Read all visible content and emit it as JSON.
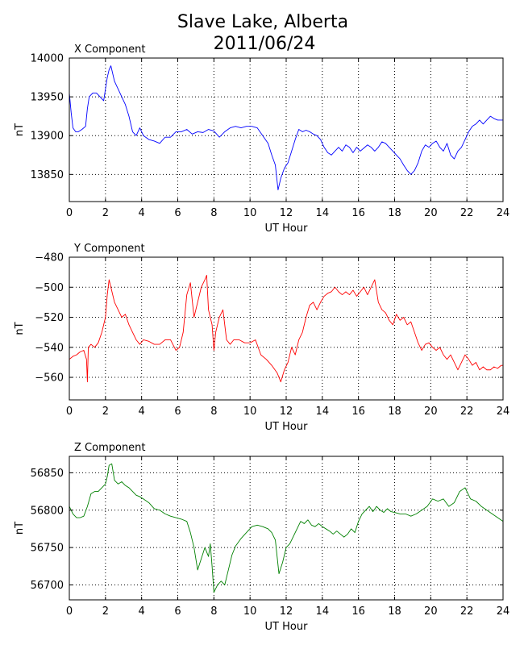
{
  "figure": {
    "title_line1": "Slave Lake, Alberta",
    "title_line2": "2011/06/24"
  },
  "chart_data": [
    {
      "type": "line",
      "title": "X Component",
      "xlabel": "UT Hour",
      "ylabel": "nT",
      "xlim": [
        0,
        24
      ],
      "ylim": [
        13815,
        14000
      ],
      "xticks": [
        0,
        2,
        4,
        6,
        8,
        10,
        12,
        14,
        16,
        18,
        20,
        22,
        24
      ],
      "yticks": [
        13850,
        13900,
        13950,
        14000
      ],
      "grid": true,
      "series": [
        {
          "color": "#0000ff",
          "x": [
            0,
            0.1,
            0.2,
            0.35,
            0.5,
            0.7,
            0.9,
            1.0,
            1.1,
            1.3,
            1.5,
            1.7,
            1.9,
            2.0,
            2.1,
            2.2,
            2.3,
            2.5,
            2.7,
            2.9,
            3.1,
            3.3,
            3.5,
            3.7,
            3.9,
            4.1,
            4.4,
            4.7,
            5.0,
            5.3,
            5.6,
            5.9,
            6.2,
            6.5,
            6.8,
            7.1,
            7.4,
            7.7,
            8.0,
            8.3,
            8.6,
            8.9,
            9.2,
            9.5,
            9.8,
            10.1,
            10.4,
            10.7,
            11.0,
            11.2,
            11.4,
            11.55,
            11.7,
            11.9,
            12.1,
            12.3,
            12.5,
            12.7,
            12.9,
            13.1,
            13.3,
            13.5,
            13.7,
            13.9,
            14.1,
            14.3,
            14.5,
            14.7,
            14.9,
            15.1,
            15.3,
            15.5,
            15.7,
            15.9,
            16.1,
            16.3,
            16.5,
            16.7,
            16.9,
            17.1,
            17.3,
            17.5,
            17.7,
            17.9,
            18.1,
            18.3,
            18.5,
            18.7,
            18.9,
            19.1,
            19.3,
            19.5,
            19.7,
            19.9,
            20.1,
            20.3,
            20.5,
            20.7,
            20.9,
            21.1,
            21.3,
            21.5,
            21.7,
            21.9,
            22.1,
            22.3,
            22.5,
            22.7,
            22.9,
            23.1,
            23.3,
            23.5,
            23.7,
            23.9,
            24.0
          ],
          "y": [
            13955,
            13930,
            13910,
            13905,
            13905,
            13908,
            13912,
            13935,
            13950,
            13955,
            13955,
            13950,
            13945,
            13960,
            13975,
            13985,
            13990,
            13970,
            13960,
            13950,
            13940,
            13925,
            13905,
            13900,
            13910,
            13900,
            13895,
            13893,
            13890,
            13898,
            13898,
            13905,
            13905,
            13908,
            13902,
            13905,
            13904,
            13908,
            13906,
            13898,
            13905,
            13910,
            13912,
            13910,
            13912,
            13912,
            13910,
            13900,
            13890,
            13875,
            13862,
            13830,
            13845,
            13858,
            13865,
            13880,
            13895,
            13908,
            13905,
            13907,
            13905,
            13902,
            13900,
            13895,
            13885,
            13878,
            13875,
            13880,
            13885,
            13880,
            13888,
            13885,
            13878,
            13885,
            13880,
            13884,
            13888,
            13885,
            13880,
            13885,
            13892,
            13890,
            13885,
            13880,
            13875,
            13870,
            13862,
            13855,
            13850,
            13855,
            13865,
            13880,
            13888,
            13885,
            13890,
            13893,
            13885,
            13880,
            13890,
            13875,
            13870,
            13880,
            13885,
            13895,
            13905,
            13912,
            13915,
            13920,
            13915,
            13920,
            13925,
            13922,
            13920,
            13920,
            13920
          ]
        }
      ]
    },
    {
      "type": "line",
      "title": "Y Component",
      "xlabel": "UT Hour",
      "ylabel": "nT",
      "xlim": [
        0,
        24
      ],
      "ylim": [
        -575,
        -480
      ],
      "xticks": [
        0,
        2,
        4,
        6,
        8,
        10,
        12,
        14,
        16,
        18,
        20,
        22,
        24
      ],
      "yticks": [
        -560,
        -540,
        -520,
        -500,
        -480
      ],
      "grid": true,
      "series": [
        {
          "color": "#ff0000",
          "x": [
            0,
            0.2,
            0.4,
            0.6,
            0.8,
            0.95,
            1.0,
            1.05,
            1.2,
            1.4,
            1.6,
            1.8,
            2.0,
            2.1,
            2.2,
            2.3,
            2.5,
            2.7,
            2.9,
            3.1,
            3.3,
            3.5,
            3.7,
            3.9,
            4.1,
            4.4,
            4.7,
            5.0,
            5.3,
            5.6,
            5.9,
            6.1,
            6.3,
            6.5,
            6.7,
            6.9,
            7.1,
            7.3,
            7.5,
            7.6,
            7.7,
            7.9,
            8.0,
            8.1,
            8.3,
            8.5,
            8.7,
            8.9,
            9.1,
            9.4,
            9.7,
            10.0,
            10.3,
            10.6,
            10.9,
            11.2,
            11.5,
            11.7,
            11.9,
            12.1,
            12.3,
            12.5,
            12.7,
            12.9,
            13.1,
            13.3,
            13.5,
            13.7,
            13.9,
            14.1,
            14.3,
            14.5,
            14.7,
            14.9,
            15.1,
            15.3,
            15.5,
            15.7,
            15.9,
            16.1,
            16.3,
            16.5,
            16.7,
            16.9,
            17.1,
            17.3,
            17.5,
            17.7,
            17.9,
            18.1,
            18.3,
            18.5,
            18.7,
            18.9,
            19.1,
            19.3,
            19.5,
            19.7,
            19.9,
            20.1,
            20.3,
            20.5,
            20.7,
            20.9,
            21.1,
            21.3,
            21.5,
            21.7,
            21.9,
            22.1,
            22.3,
            22.5,
            22.7,
            22.9,
            23.1,
            23.3,
            23.5,
            23.7,
            23.9,
            24.0
          ],
          "y": [
            -548,
            -546,
            -545,
            -543,
            -542,
            -548,
            -563,
            -540,
            -538,
            -540,
            -537,
            -530,
            -520,
            -505,
            -495,
            -500,
            -510,
            -515,
            -520,
            -518,
            -525,
            -530,
            -535,
            -538,
            -535,
            -536,
            -538,
            -538,
            -535,
            -535,
            -542,
            -540,
            -530,
            -505,
            -497,
            -520,
            -510,
            -500,
            -495,
            -492,
            -515,
            -525,
            -542,
            -530,
            -520,
            -515,
            -535,
            -538,
            -535,
            -535,
            -537,
            -537,
            -535,
            -545,
            -548,
            -552,
            -557,
            -563,
            -555,
            -550,
            -540,
            -545,
            -535,
            -530,
            -520,
            -512,
            -510,
            -515,
            -510,
            -506,
            -504,
            -503,
            -500,
            -503,
            -505,
            -503,
            -505,
            -502,
            -506,
            -503,
            -500,
            -505,
            -500,
            -495,
            -510,
            -515,
            -517,
            -522,
            -525,
            -518,
            -522,
            -520,
            -525,
            -523,
            -530,
            -537,
            -542,
            -538,
            -537,
            -540,
            -542,
            -540,
            -545,
            -548,
            -545,
            -550,
            -555,
            -550,
            -545,
            -548,
            -552,
            -550,
            -555,
            -553,
            -555,
            -555,
            -553,
            -554,
            -552,
            -552
          ]
        }
      ]
    },
    {
      "type": "line",
      "title": "Z Component",
      "xlabel": "UT Hour",
      "ylabel": "nT",
      "xlim": [
        0,
        24
      ],
      "ylim": [
        56680,
        56872
      ],
      "xticks": [
        0,
        2,
        4,
        6,
        8,
        10,
        12,
        14,
        16,
        18,
        20,
        22,
        24
      ],
      "yticks": [
        56700,
        56750,
        56800,
        56850
      ],
      "grid": true,
      "series": [
        {
          "color": "#008000",
          "x": [
            0,
            0.2,
            0.4,
            0.6,
            0.8,
            1.0,
            1.2,
            1.4,
            1.6,
            1.8,
            2.0,
            2.1,
            2.2,
            2.35,
            2.5,
            2.7,
            2.9,
            3.1,
            3.3,
            3.5,
            3.7,
            3.9,
            4.1,
            4.4,
            4.7,
            5.0,
            5.3,
            5.6,
            5.9,
            6.2,
            6.5,
            6.7,
            6.9,
            7.1,
            7.3,
            7.5,
            7.7,
            7.8,
            7.9,
            8.0,
            8.2,
            8.4,
            8.6,
            8.8,
            9.0,
            9.2,
            9.5,
            9.8,
            10.1,
            10.4,
            10.7,
            11.0,
            11.2,
            11.4,
            11.6,
            11.8,
            12.0,
            12.2,
            12.4,
            12.6,
            12.8,
            13.0,
            13.2,
            13.4,
            13.6,
            13.8,
            14.0,
            14.2,
            14.4,
            14.6,
            14.8,
            15.0,
            15.2,
            15.4,
            15.6,
            15.8,
            16.0,
            16.2,
            16.4,
            16.6,
            16.8,
            17.0,
            17.2,
            17.4,
            17.6,
            17.8,
            18.0,
            18.3,
            18.6,
            18.9,
            19.2,
            19.5,
            19.8,
            20.1,
            20.4,
            20.7,
            21.0,
            21.3,
            21.6,
            21.9,
            22.2,
            22.5,
            22.8,
            23.1,
            23.4,
            23.7,
            24.0
          ],
          "y": [
            56805,
            56795,
            56790,
            56790,
            56792,
            56805,
            56822,
            56825,
            56825,
            56830,
            56835,
            56845,
            56860,
            56862,
            56840,
            56835,
            56838,
            56833,
            56830,
            56825,
            56820,
            56818,
            56815,
            56810,
            56802,
            56800,
            56795,
            56792,
            56790,
            56788,
            56785,
            56770,
            56750,
            56720,
            56735,
            56750,
            56738,
            56755,
            56725,
            56690,
            56700,
            56705,
            56700,
            56720,
            56740,
            56752,
            56762,
            56770,
            56778,
            56780,
            56778,
            56775,
            56770,
            56760,
            56715,
            56730,
            56750,
            56755,
            56765,
            56775,
            56785,
            56782,
            56787,
            56780,
            56778,
            56782,
            56778,
            56775,
            56772,
            56768,
            56772,
            56768,
            56764,
            56768,
            56775,
            56770,
            56785,
            56795,
            56800,
            56805,
            56798,
            56805,
            56800,
            56797,
            56802,
            56798,
            56797,
            56795,
            56795,
            56792,
            56795,
            56800,
            56805,
            56815,
            56812,
            56815,
            56805,
            56810,
            56825,
            56830,
            56815,
            56812,
            56805,
            56800,
            56795,
            56790,
            56785
          ]
        }
      ]
    }
  ]
}
